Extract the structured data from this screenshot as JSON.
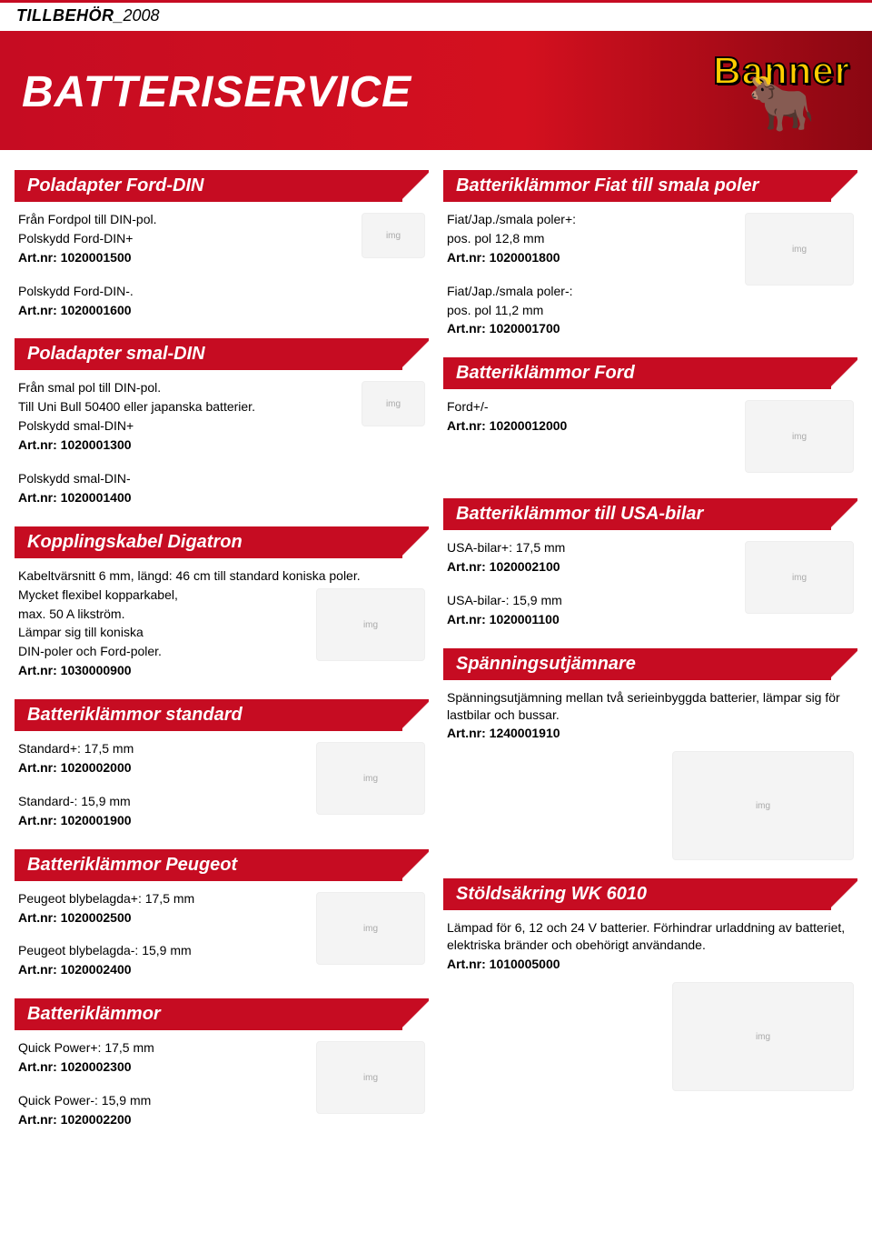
{
  "colors": {
    "banner_red": "#c60c22",
    "banner_red_dark": "#8a0712",
    "brand_yellow": "#ffcc00",
    "text": "#000000",
    "bg": "#ffffff"
  },
  "typography": {
    "title_fontsize": 48,
    "section_fontsize": 20,
    "body_fontsize": 14,
    "tag_fontsize": 18
  },
  "header": {
    "tag_bold": "TILLBEHÖR",
    "tag_year": "_2008",
    "title": "BATTERISERVICE",
    "brand": "Banner"
  },
  "left": {
    "s1": {
      "title": "Poladapter Ford-DIN",
      "l1": "Från Fordpol till DIN-pol.",
      "l2": "Polskydd Ford-DIN+",
      "a1": "Art.nr: 1020001500",
      "l3": "Polskydd Ford-DIN-.",
      "a2": "Art.nr: 1020001600"
    },
    "s2": {
      "title": "Poladapter smal-DIN",
      "l1": "Från smal pol till DIN-pol.",
      "l2": "Till Uni Bull 50400 eller japanska batterier.",
      "l3": "Polskydd smal-DIN+",
      "a1": "Art.nr: 1020001300",
      "l4": "Polskydd smal-DIN-",
      "a2": "Art.nr: 1020001400"
    },
    "s3": {
      "title": "Kopplingskabel Digatron",
      "l1": "Kabeltvärsnitt 6 mm, längd: 46 cm till standard koniska poler.",
      "l2": "Mycket flexibel kopparkabel,",
      "l3": "max. 50 A likström.",
      "l4": "Lämpar sig till koniska",
      "l5": "DIN-poler och Ford-poler.",
      "a1": "Art.nr: 1030000900"
    },
    "s4": {
      "title": "Batteriklämmor standard",
      "l1": "Standard+: 17,5 mm",
      "a1": "Art.nr: 1020002000",
      "l2": "Standard-: 15,9 mm",
      "a2": "Art.nr: 1020001900"
    },
    "s5": {
      "title": "Batteriklämmor Peugeot",
      "l1": "Peugeot blybelagda+: 17,5 mm",
      "a1": "Art.nr: 1020002500",
      "l2": "Peugeot blybelagda-: 15,9 mm",
      "a2": "Art.nr: 1020002400"
    },
    "s6": {
      "title": "Batteriklämmor",
      "l1": "Quick Power+: 17,5 mm",
      "a1": "Art.nr: 1020002300",
      "l2": "Quick Power-: 15,9 mm",
      "a2": "Art.nr: 1020002200"
    }
  },
  "right": {
    "s1": {
      "title": "Batteriklämmor Fiat till smala poler",
      "l1": "Fiat/Jap./smala poler+:",
      "l2": "pos. pol 12,8 mm",
      "a1": "Art.nr: 1020001800",
      "l3": "Fiat/Jap./smala poler-:",
      "l4": "pos. pol 11,2 mm",
      "a2": "Art.nr: 1020001700"
    },
    "s2": {
      "title": "Batteriklämmor Ford",
      "l1": "Ford+/-",
      "a1": "Art.nr: 10200012000"
    },
    "s3": {
      "title": "Batteriklämmor till USA-bilar",
      "l1": "USA-bilar+: 17,5 mm",
      "a1": "Art.nr: 1020002100",
      "l2": "USA-bilar-: 15,9 mm",
      "a2": "Art.nr: 1020001100"
    },
    "s4": {
      "title": "Spänningsutjämnare",
      "l1": "Spänningsutjämning mellan två serieinbyggda batterier, lämpar sig för lastbilar och  bussar.",
      "a1": "Art.nr: 1240001910"
    },
    "s5": {
      "title": "Stöldsäkring WK 6010",
      "l1": "Lämpad för 6, 12 och 24 V batterier. Förhindrar urladdning av batteriet, elektriska bränder och obehörigt användande.",
      "a1": "Art.nr: 1010005000"
    }
  }
}
